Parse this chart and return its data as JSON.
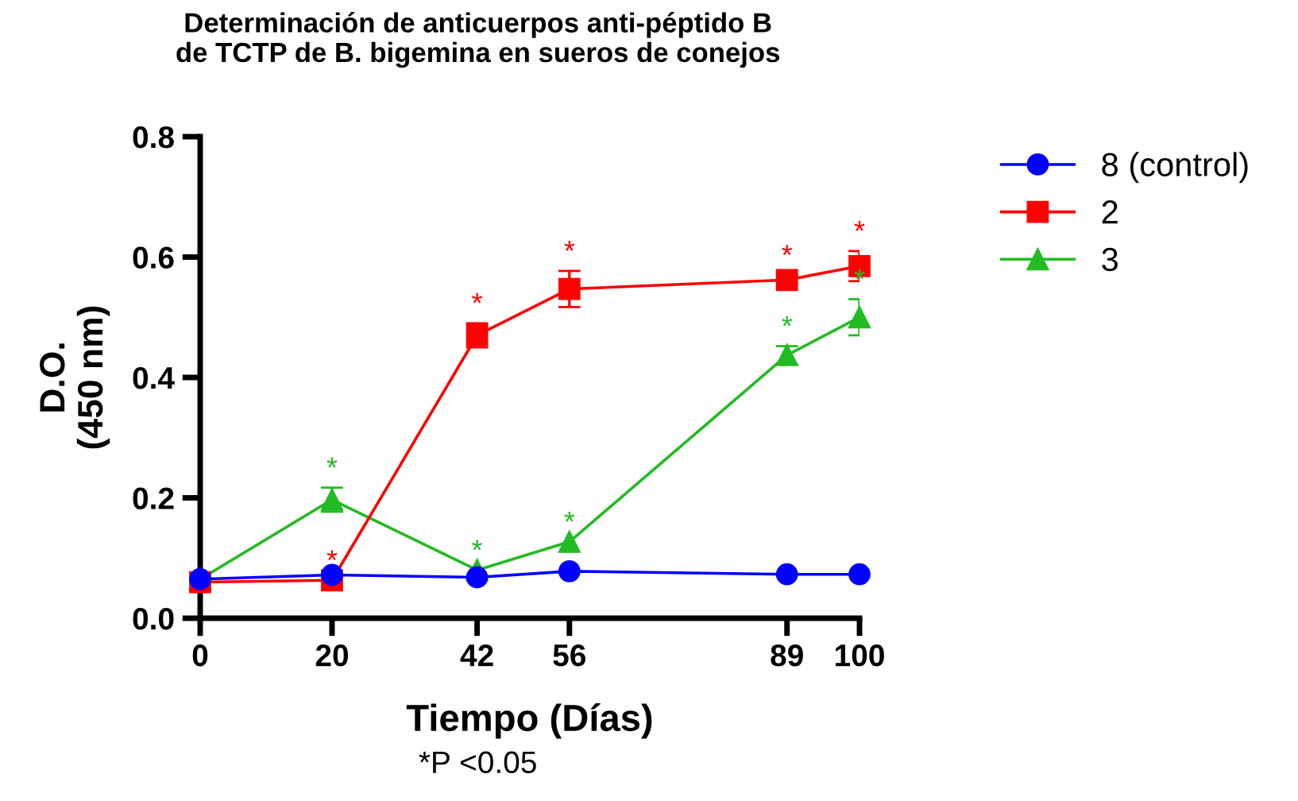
{
  "chart_data": {
    "type": "line",
    "title": "Determinación de anticuerpos anti-péptido B\nde TCTP de B. bigemina en sueros de conejos",
    "xlabel": "Tiempo (Días)",
    "ylabel": "D.O.\n(450 nm)",
    "annotations": [
      "*P <0.05"
    ],
    "x": [
      0,
      20,
      42,
      56,
      89,
      100
    ],
    "xlim": [
      0,
      100
    ],
    "xticks": [
      0,
      20,
      42,
      56,
      89,
      100
    ],
    "ylim": [
      0,
      0.8
    ],
    "yticks": [
      {
        "value": 0,
        "label": "0.0"
      },
      0.2,
      0.4,
      0.6,
      0.8
    ],
    "grid": false,
    "legend": "top right",
    "series": [
      {
        "name": "8 (control)",
        "color": "#0000ff",
        "marker": "circle",
        "values": [
          0.065,
          0.072,
          0.068,
          0.078,
          0.073,
          0.073
        ]
      },
      {
        "name": "2",
        "color": "#ff0000",
        "marker": "square",
        "values": [
          0.06,
          0.063,
          0.47,
          0.547,
          0.562,
          0.585
        ],
        "errors": [
          null,
          null,
          0.02,
          0.03,
          0.008,
          0.025
        ],
        "value_labels": [
          null,
          "*",
          "*",
          "*",
          "*",
          "*"
        ]
      },
      {
        "name": "3",
        "color": "#22bb22",
        "marker": "triangle",
        "values": [
          0.065,
          0.197,
          0.08,
          0.127,
          0.437,
          0.5
        ],
        "errors": [
          null,
          0.02,
          null,
          null,
          0.015,
          0.03
        ],
        "value_labels": [
          null,
          "*",
          "*",
          "*",
          "*",
          "*"
        ]
      }
    ]
  }
}
